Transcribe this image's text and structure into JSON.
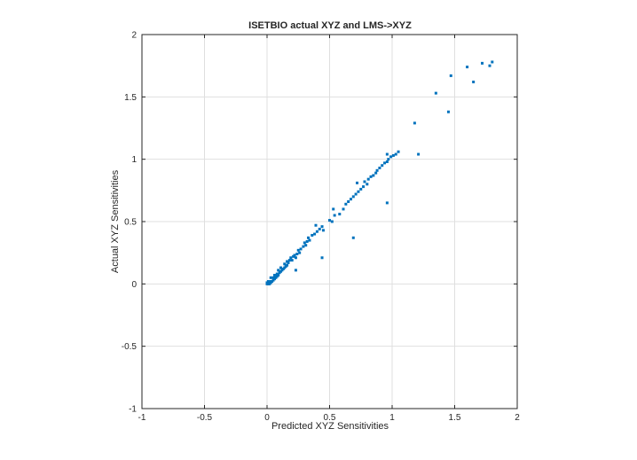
{
  "chart_data": {
    "type": "scatter",
    "title": "ISETBIO actual XYZ and LMS->XYZ",
    "xlabel": "Predicted XYZ Sensitivities",
    "ylabel": "Actual XYZ Sensitivities",
    "xlim": [
      -1,
      2
    ],
    "ylim": [
      -1,
      2
    ],
    "xticks": [
      -1,
      -0.5,
      0,
      0.5,
      1,
      1.5,
      2
    ],
    "yticks": [
      -1,
      -0.5,
      0,
      0.5,
      1,
      1.5,
      2
    ],
    "xtick_labels": [
      "-1",
      "-0.5",
      "0",
      "0.5",
      "1",
      "1.5",
      "2"
    ],
    "ytick_labels": [
      "-1",
      "-0.5",
      "0",
      "0.5",
      "1",
      "1.5",
      "2"
    ],
    "grid": true,
    "marker_color": "#0072BD",
    "series": [
      {
        "points": [
          [
            0.0,
            0.0
          ],
          [
            0.01,
            0.0
          ],
          [
            0.02,
            0.0
          ],
          [
            0.0,
            0.01
          ],
          [
            0.01,
            0.01
          ],
          [
            0.02,
            0.01
          ],
          [
            0.03,
            0.01
          ],
          [
            0.01,
            0.02
          ],
          [
            0.03,
            0.02
          ],
          [
            0.04,
            0.02
          ],
          [
            0.05,
            0.03
          ],
          [
            0.06,
            0.04
          ],
          [
            0.03,
            0.05
          ],
          [
            0.05,
            0.05
          ],
          [
            0.07,
            0.05
          ],
          [
            0.08,
            0.06
          ],
          [
            0.06,
            0.07
          ],
          [
            0.09,
            0.07
          ],
          [
            0.08,
            0.08
          ],
          [
            0.1,
            0.09
          ],
          [
            0.11,
            0.1
          ],
          [
            0.09,
            0.11
          ],
          [
            0.12,
            0.11
          ],
          [
            0.13,
            0.12
          ],
          [
            0.11,
            0.13
          ],
          [
            0.14,
            0.13
          ],
          [
            0.15,
            0.14
          ],
          [
            0.16,
            0.15
          ],
          [
            0.14,
            0.16
          ],
          [
            0.17,
            0.17
          ],
          [
            0.16,
            0.18
          ],
          [
            0.18,
            0.19
          ],
          [
            0.2,
            0.19
          ],
          [
            0.19,
            0.21
          ],
          [
            0.21,
            0.22
          ],
          [
            0.23,
            0.21
          ],
          [
            0.22,
            0.23
          ],
          [
            0.24,
            0.24
          ],
          [
            0.26,
            0.25
          ],
          [
            0.25,
            0.27
          ],
          [
            0.27,
            0.28
          ],
          [
            0.29,
            0.3
          ],
          [
            0.31,
            0.31
          ],
          [
            0.3,
            0.33
          ],
          [
            0.32,
            0.34
          ],
          [
            0.34,
            0.35
          ],
          [
            0.33,
            0.37
          ],
          [
            0.36,
            0.39
          ],
          [
            0.38,
            0.4
          ],
          [
            0.4,
            0.42
          ],
          [
            0.42,
            0.44
          ],
          [
            0.45,
            0.43
          ],
          [
            0.44,
            0.46
          ],
          [
            0.39,
            0.47
          ],
          [
            0.23,
            0.11
          ],
          [
            0.44,
            0.21
          ],
          [
            0.5,
            0.51
          ],
          [
            0.52,
            0.5
          ],
          [
            0.54,
            0.55
          ],
          [
            0.53,
            0.6
          ],
          [
            0.58,
            0.56
          ],
          [
            0.61,
            0.6
          ],
          [
            0.63,
            0.64
          ],
          [
            0.65,
            0.66
          ],
          [
            0.67,
            0.68
          ],
          [
            0.69,
            0.7
          ],
          [
            0.71,
            0.72
          ],
          [
            0.72,
            0.81
          ],
          [
            0.73,
            0.74
          ],
          [
            0.75,
            0.76
          ],
          [
            0.77,
            0.78
          ],
          [
            0.78,
            0.82
          ],
          [
            0.8,
            0.8
          ],
          [
            0.81,
            0.84
          ],
          [
            0.83,
            0.86
          ],
          [
            0.85,
            0.87
          ],
          [
            0.87,
            0.89
          ],
          [
            0.88,
            0.91
          ],
          [
            0.9,
            0.93
          ],
          [
            0.92,
            0.95
          ],
          [
            0.94,
            0.97
          ],
          [
            0.96,
            0.98
          ],
          [
            0.97,
            1.0
          ],
          [
            0.99,
            1.02
          ],
          [
            1.01,
            1.03
          ],
          [
            1.03,
            1.04
          ],
          [
            1.05,
            1.06
          ],
          [
            0.96,
            1.04
          ],
          [
            0.69,
            0.37
          ],
          [
            0.96,
            0.65
          ],
          [
            1.21,
            1.04
          ],
          [
            1.18,
            1.29
          ],
          [
            1.35,
            1.53
          ],
          [
            1.45,
            1.38
          ],
          [
            1.47,
            1.67
          ],
          [
            1.6,
            1.74
          ],
          [
            1.65,
            1.62
          ],
          [
            1.72,
            1.77
          ],
          [
            1.78,
            1.75
          ],
          [
            1.8,
            1.78
          ]
        ]
      }
    ]
  }
}
